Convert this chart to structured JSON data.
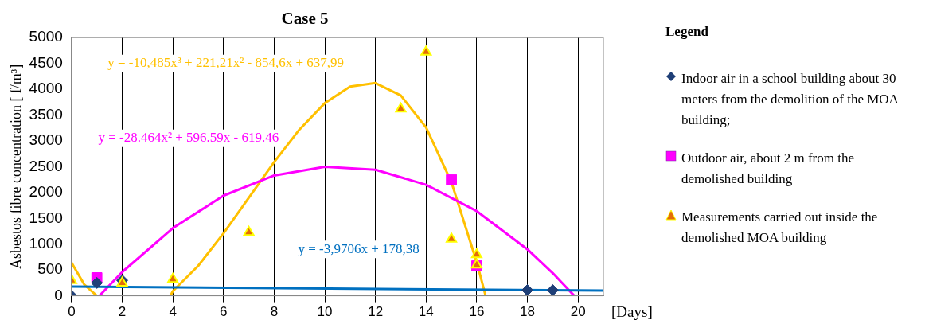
{
  "chart_data": {
    "type": "scatter",
    "title": "Case 5",
    "xlabel": "[Days]",
    "ylabel": "Asbestos fibre concentration [ f/m³]",
    "legend_title": "Legend",
    "legend": "right",
    "grid": "x",
    "xlim": [
      0,
      21
    ],
    "xticks": [
      0,
      2,
      4,
      6,
      8,
      10,
      12,
      14,
      16,
      18,
      20
    ],
    "ylim": [
      0,
      5000
    ],
    "yticks": [
      0,
      500,
      1000,
      1500,
      2000,
      2500,
      3000,
      3500,
      4000,
      4500,
      5000
    ],
    "series": [
      {
        "name": "Indoor air in a school building about 30 meters from the demolition of the MOA building;",
        "type": "scatter",
        "marker": "diamond",
        "color": "#1f3f77",
        "x": [
          0,
          1,
          2,
          18,
          19
        ],
        "values": [
          0,
          250,
          300,
          110,
          110
        ]
      },
      {
        "name": "Outdoor air, about 2 m from the demolished building",
        "type": "scatter",
        "marker": "square",
        "color": "#ff00ff",
        "x": [
          1,
          15,
          16
        ],
        "values": [
          350,
          2250,
          580
        ]
      },
      {
        "name": "Measurements carried out inside the demolished MOA building",
        "type": "scatter",
        "marker": "triangle",
        "color": "#e36c09",
        "x": [
          0,
          2,
          4,
          7,
          13,
          14,
          15,
          16,
          16
        ],
        "values": [
          300,
          250,
          320,
          1230,
          3620,
          4720,
          1100,
          800,
          600
        ]
      },
      {
        "type": "line",
        "marker": "none",
        "line_style": "solid",
        "color": "#0070c0",
        "x": [
          0,
          21
        ],
        "values": [
          180,
          100
        ]
      },
      {
        "type": "line",
        "marker": "none",
        "line_style": "solid",
        "color": "#ff00ff",
        "x": [
          1.1,
          2,
          4,
          6,
          8,
          10,
          12,
          14,
          16,
          18,
          19,
          19.85
        ],
        "values": [
          0,
          460,
          1310,
          1940,
          2330,
          2500,
          2440,
          2150,
          1640,
          900,
          440,
          0
        ]
      },
      {
        "type": "line",
        "marker": "none",
        "line_style": "solid",
        "color": "#ffc000",
        "x": [
          0,
          0.5,
          1,
          1.05,
          3.9,
          4,
          5,
          6,
          7,
          8,
          9,
          10,
          11,
          12,
          13,
          14,
          15,
          16,
          16.35
        ],
        "values": [
          640,
          220,
          0,
          null,
          0,
          90,
          580,
          1210,
          1900,
          2590,
          3220,
          3730,
          4050,
          4120,
          3880,
          3260,
          2200,
          650,
          0
        ]
      }
    ],
    "annotations": [
      "y = -3,9706x + 178,38",
      "y = -28.464x² + 596.59x - 619.46",
      "y = -10,485x³ + 221,21x² - 854,6x + 637,99"
    ]
  }
}
